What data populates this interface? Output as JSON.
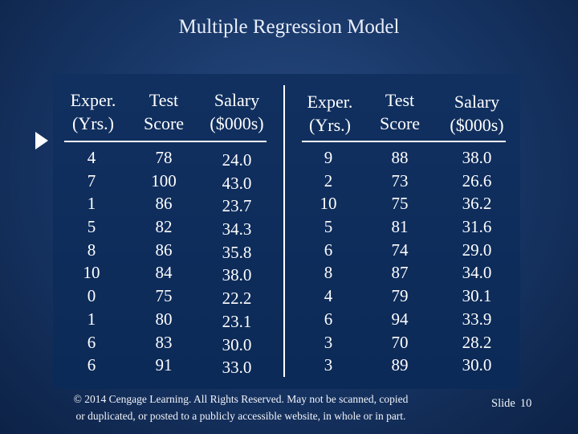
{
  "title": "Multiple Regression Model",
  "table": {
    "headers": [
      {
        "line1": "Exper.",
        "line2": "(Yrs.)"
      },
      {
        "line1": "Test",
        "line2": "Score"
      },
      {
        "line1": "Salary",
        "line2": "($000s)"
      },
      {
        "line1": "Exper.",
        "line2": "(Yrs.)"
      },
      {
        "line1": "Test",
        "line2": "Score"
      },
      {
        "line1": "Salary",
        "line2": "($000s)"
      }
    ],
    "columns": [
      [
        "4",
        "7",
        "1",
        "5",
        "8",
        "10",
        "0",
        "1",
        "6",
        "6"
      ],
      [
        "78",
        "100",
        "86",
        "82",
        "86",
        "84",
        "75",
        "80",
        "83",
        "91"
      ],
      [
        "24.0",
        "43.0",
        "23.7",
        "34.3",
        "35.8",
        "38.0",
        "22.2",
        "23.1",
        "30.0",
        "33.0"
      ],
      [
        "9",
        "2",
        "10",
        "5",
        "6",
        "8",
        "4",
        "6",
        "3",
        "3"
      ],
      [
        "88",
        "73",
        "75",
        "81",
        "74",
        "87",
        "79",
        "94",
        "70",
        "89"
      ],
      [
        "38.0",
        "26.6",
        "36.2",
        "31.6",
        "29.0",
        "34.0",
        "30.1",
        "33.9",
        "28.2",
        "30.0"
      ]
    ]
  },
  "footer": {
    "line1": "© 2014  Cengage Learning.  All Rights Reserved.  May not be scanned, copied",
    "line2": "or duplicated, or posted to a publicly accessible website, in whole or in part."
  },
  "slide": {
    "label": "Slide",
    "number": "10"
  },
  "colors": {
    "background": "#163463",
    "panel": "#0c2a57",
    "text": "#ffffff"
  },
  "icons": {
    "pointer": "right-triangle-arrow-icon"
  }
}
